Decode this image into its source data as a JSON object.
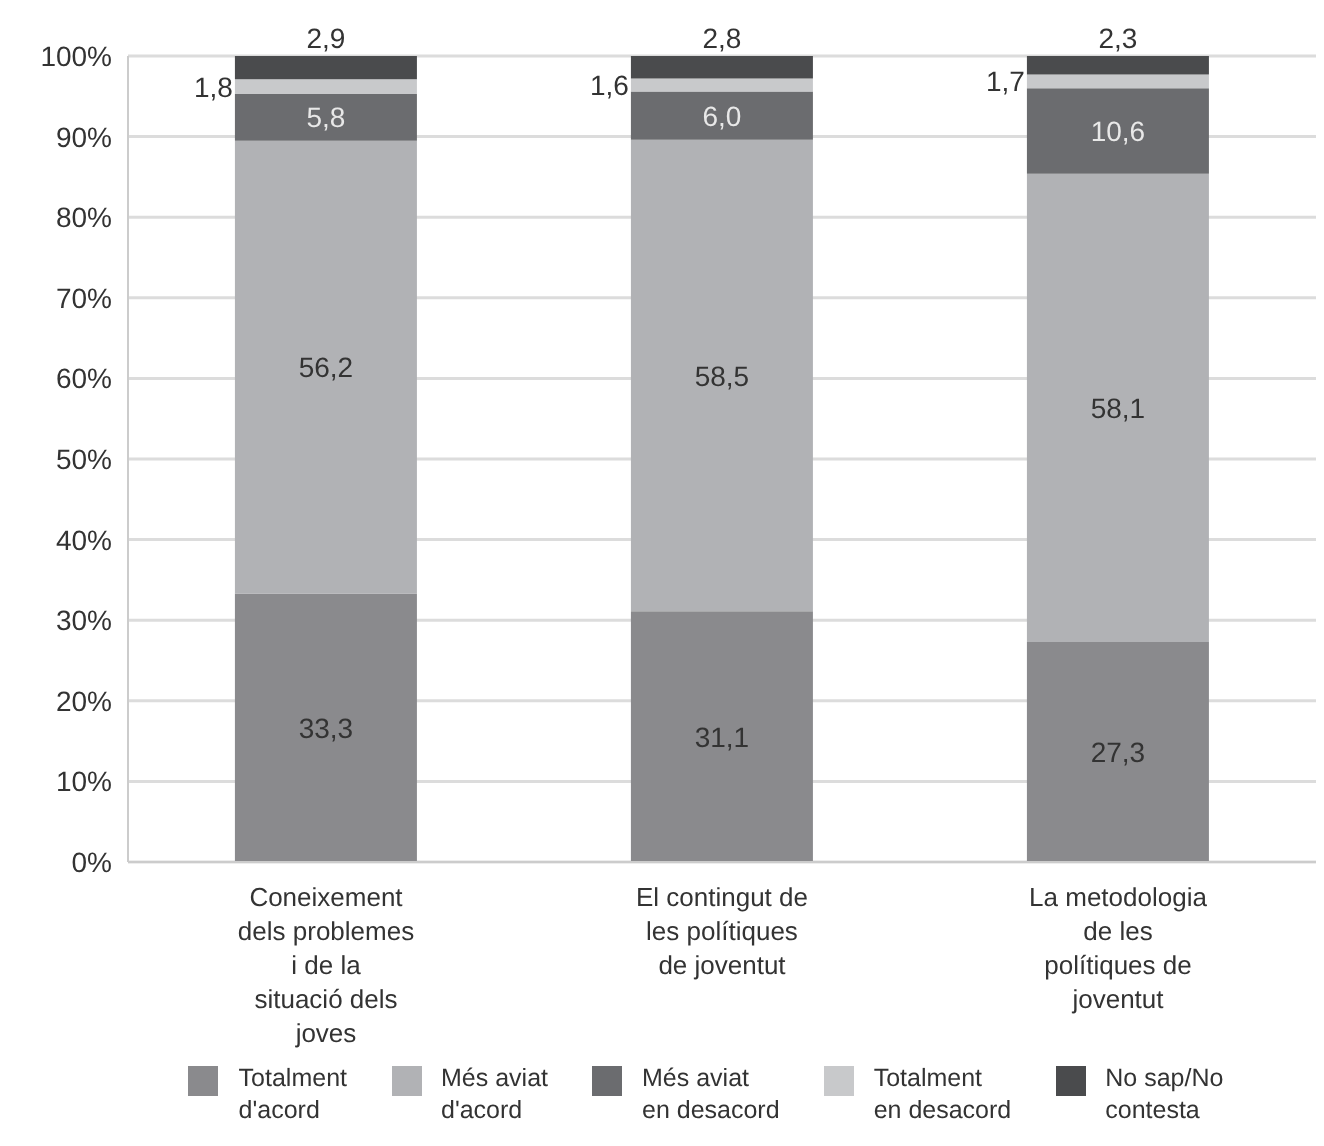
{
  "chart_data": {
    "type": "bar",
    "stacked": true,
    "categories": [
      "Coneixement dels problemes i de la situació dels joves",
      "El contingut de les polítiques de joventut",
      "La metodologia de les polítiques de joventut"
    ],
    "series": [
      {
        "name": "Totalment d'acord",
        "color": "#8a8a8d",
        "values": [
          33.3,
          31.1,
          27.3
        ],
        "value_labels": [
          "33,3",
          "31,1",
          "27,3"
        ]
      },
      {
        "name": "Més aviat d'acord",
        "color": "#b1b2b5",
        "values": [
          56.2,
          58.5,
          58.1
        ],
        "value_labels": [
          "56,2",
          "58,5",
          "58,1"
        ]
      },
      {
        "name": "Més aviat en desacord",
        "color": "#6b6c6f",
        "values": [
          5.8,
          6.0,
          10.6
        ],
        "value_labels": [
          "5,8",
          "6,0",
          "10,6"
        ]
      },
      {
        "name": "Totalment en desacord",
        "color": "#c8c9cb",
        "values": [
          1.8,
          1.6,
          1.7
        ],
        "value_labels": [
          "1,8",
          "1,6",
          "1,7"
        ]
      },
      {
        "name": "No sap/No contesta",
        "color": "#4a4b4d",
        "values": [
          2.9,
          2.8,
          2.3
        ],
        "value_labels": [
          "2,9",
          "2,8",
          "2,3"
        ]
      }
    ],
    "ylim": [
      0,
      100
    ],
    "yticks": [
      {
        "value": 0,
        "label": "0%"
      },
      {
        "value": 10,
        "label": "10%"
      },
      {
        "value": 20,
        "label": "20%"
      },
      {
        "value": 30,
        "label": "30%"
      },
      {
        "value": 40,
        "label": "40%"
      },
      {
        "value": 50,
        "label": "50%"
      },
      {
        "value": 60,
        "label": "60%"
      },
      {
        "value": 70,
        "label": "70%"
      },
      {
        "value": 80,
        "label": "80%"
      },
      {
        "value": 90,
        "label": "90%"
      },
      {
        "value": 100,
        "label": "100%"
      }
    ],
    "grid": "y",
    "legend": "bottom"
  }
}
